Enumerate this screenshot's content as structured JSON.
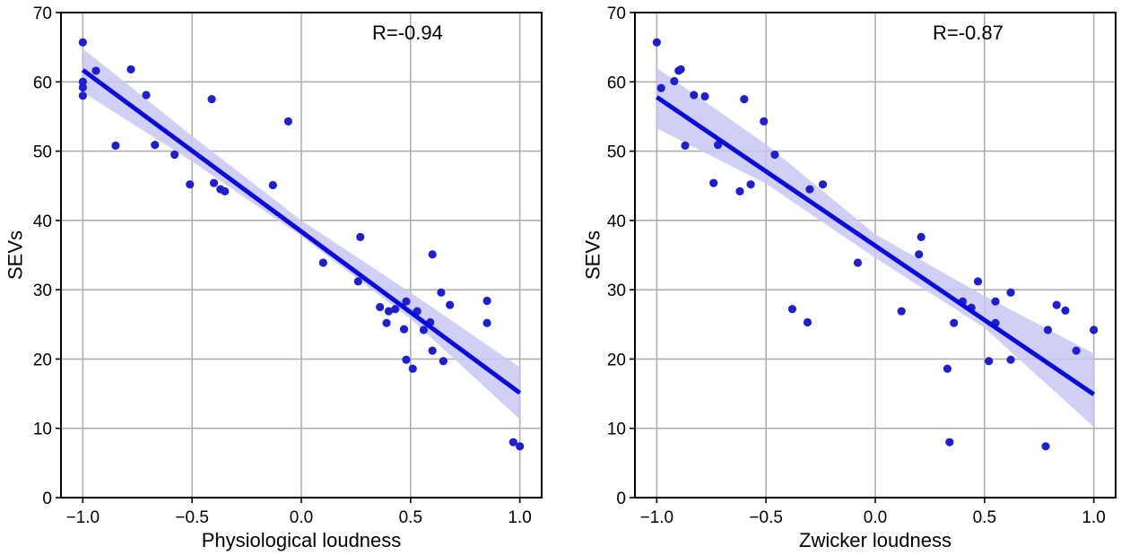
{
  "chart_data": [
    {
      "type": "scatter",
      "title": "",
      "xlabel": "Physiological loudness",
      "ylabel": "SEVs",
      "xlim": [
        -1.1,
        1.1
      ],
      "ylim": [
        0,
        70
      ],
      "xticks": [
        -1.0,
        -0.5,
        0.0,
        0.5,
        1.0
      ],
      "xtick_labels": [
        "−1.0",
        "−0.5",
        "0.0",
        "0.5",
        "1.0"
      ],
      "yticks": [
        0,
        10,
        20,
        30,
        40,
        50,
        60,
        70
      ],
      "ytick_labels": [
        "0",
        "10",
        "20",
        "30",
        "40",
        "50",
        "60",
        "70"
      ],
      "grid": true,
      "annotation": "R=-0.94",
      "regression": {
        "x": [
          -1.0,
          1.0
        ],
        "y": [
          61.7,
          15.1
        ]
      },
      "ci_band": {
        "x": [
          -1.0,
          -0.5,
          0.0,
          0.5,
          1.0
        ],
        "lower": [
          58.5,
          48.5,
          37.7,
          25.8,
          11.3
        ],
        "upper": [
          64.8,
          52.2,
          40.0,
          29.6,
          18.8
        ]
      },
      "colors": {
        "points": "#1f1fcc",
        "line": "#0a0ad9",
        "band": "#c8c8f4"
      },
      "points": [
        {
          "x": -1.0,
          "y": 65.7
        },
        {
          "x": -1.0,
          "y": 60.0
        },
        {
          "x": -1.0,
          "y": 59.2
        },
        {
          "x": -1.0,
          "y": 58.0
        },
        {
          "x": -0.94,
          "y": 61.6
        },
        {
          "x": -0.78,
          "y": 61.8
        },
        {
          "x": -0.71,
          "y": 58.1
        },
        {
          "x": -0.85,
          "y": 50.8
        },
        {
          "x": -0.67,
          "y": 50.9
        },
        {
          "x": -0.58,
          "y": 49.5
        },
        {
          "x": -0.51,
          "y": 45.2
        },
        {
          "x": -0.41,
          "y": 57.5
        },
        {
          "x": -0.4,
          "y": 45.4
        },
        {
          "x": -0.37,
          "y": 44.5
        },
        {
          "x": -0.35,
          "y": 44.2
        },
        {
          "x": -0.13,
          "y": 45.1
        },
        {
          "x": -0.06,
          "y": 54.3
        },
        {
          "x": 0.1,
          "y": 33.9
        },
        {
          "x": 0.26,
          "y": 31.2
        },
        {
          "x": 0.27,
          "y": 37.6
        },
        {
          "x": 0.36,
          "y": 27.5
        },
        {
          "x": 0.39,
          "y": 25.2
        },
        {
          "x": 0.4,
          "y": 26.9
        },
        {
          "x": 0.43,
          "y": 27.2
        },
        {
          "x": 0.47,
          "y": 24.3
        },
        {
          "x": 0.48,
          "y": 28.3
        },
        {
          "x": 0.48,
          "y": 19.9
        },
        {
          "x": 0.51,
          "y": 18.6
        },
        {
          "x": 0.53,
          "y": 26.9
        },
        {
          "x": 0.56,
          "y": 24.2
        },
        {
          "x": 0.59,
          "y": 25.3
        },
        {
          "x": 0.6,
          "y": 35.1
        },
        {
          "x": 0.6,
          "y": 21.2
        },
        {
          "x": 0.64,
          "y": 29.6
        },
        {
          "x": 0.65,
          "y": 19.7
        },
        {
          "x": 0.68,
          "y": 27.8
        },
        {
          "x": 0.85,
          "y": 28.4
        },
        {
          "x": 0.85,
          "y": 25.2
        },
        {
          "x": 0.97,
          "y": 8.0
        },
        {
          "x": 1.0,
          "y": 7.4
        }
      ]
    },
    {
      "type": "scatter",
      "title": "",
      "xlabel": "Zwicker loudness",
      "ylabel": "SEVs",
      "xlim": [
        -1.1,
        1.1
      ],
      "ylim": [
        0,
        70
      ],
      "xticks": [
        -1.0,
        -0.5,
        0.0,
        0.5,
        1.0
      ],
      "xtick_labels": [
        "−1.0",
        "−0.5",
        "0.0",
        "0.5",
        "1.0"
      ],
      "yticks": [
        0,
        10,
        20,
        30,
        40,
        50,
        60,
        70
      ],
      "ytick_labels": [
        "0",
        "10",
        "20",
        "30",
        "40",
        "50",
        "60",
        "70"
      ],
      "grid": true,
      "annotation": "R=-0.87",
      "regression": {
        "x": [
          -1.0,
          1.0
        ],
        "y": [
          57.8,
          14.9
        ]
      },
      "ci_band": {
        "x": [
          -1.0,
          -0.5,
          0.0,
          0.5,
          1.0
        ],
        "lower": [
          53.3,
          45.3,
          34.6,
          24.5,
          10.2
        ],
        "upper": [
          62.0,
          51.0,
          38.0,
          29.1,
          20.8
        ]
      },
      "colors": {
        "points": "#1f1fcc",
        "line": "#0a0ad9",
        "band": "#c8c8f4"
      },
      "points": [
        {
          "x": -1.0,
          "y": 65.7
        },
        {
          "x": -0.98,
          "y": 59.1
        },
        {
          "x": -0.92,
          "y": 60.1
        },
        {
          "x": -0.9,
          "y": 61.6
        },
        {
          "x": -0.89,
          "y": 61.8
        },
        {
          "x": -0.87,
          "y": 50.8
        },
        {
          "x": -0.83,
          "y": 58.1
        },
        {
          "x": -0.78,
          "y": 57.9
        },
        {
          "x": -0.74,
          "y": 45.4
        },
        {
          "x": -0.72,
          "y": 50.9
        },
        {
          "x": -0.62,
          "y": 44.2
        },
        {
          "x": -0.6,
          "y": 57.5
        },
        {
          "x": -0.57,
          "y": 45.2
        },
        {
          "x": -0.51,
          "y": 54.3
        },
        {
          "x": -0.46,
          "y": 49.5
        },
        {
          "x": -0.38,
          "y": 27.2
        },
        {
          "x": -0.31,
          "y": 25.3
        },
        {
          "x": -0.3,
          "y": 44.5
        },
        {
          "x": -0.24,
          "y": 45.2
        },
        {
          "x": -0.08,
          "y": 33.9
        },
        {
          "x": 0.12,
          "y": 26.9
        },
        {
          "x": 0.2,
          "y": 35.1
        },
        {
          "x": 0.21,
          "y": 37.6
        },
        {
          "x": 0.33,
          "y": 18.6
        },
        {
          "x": 0.34,
          "y": 8.0
        },
        {
          "x": 0.36,
          "y": 25.2
        },
        {
          "x": 0.4,
          "y": 28.3
        },
        {
          "x": 0.44,
          "y": 27.4
        },
        {
          "x": 0.47,
          "y": 31.2
        },
        {
          "x": 0.52,
          "y": 19.7
        },
        {
          "x": 0.55,
          "y": 28.3
        },
        {
          "x": 0.55,
          "y": 25.2
        },
        {
          "x": 0.62,
          "y": 29.6
        },
        {
          "x": 0.62,
          "y": 19.9
        },
        {
          "x": 0.78,
          "y": 7.4
        },
        {
          "x": 0.79,
          "y": 24.2
        },
        {
          "x": 0.83,
          "y": 27.8
        },
        {
          "x": 0.87,
          "y": 27.0
        },
        {
          "x": 0.92,
          "y": 21.2
        },
        {
          "x": 1.0,
          "y": 24.2
        }
      ]
    }
  ]
}
